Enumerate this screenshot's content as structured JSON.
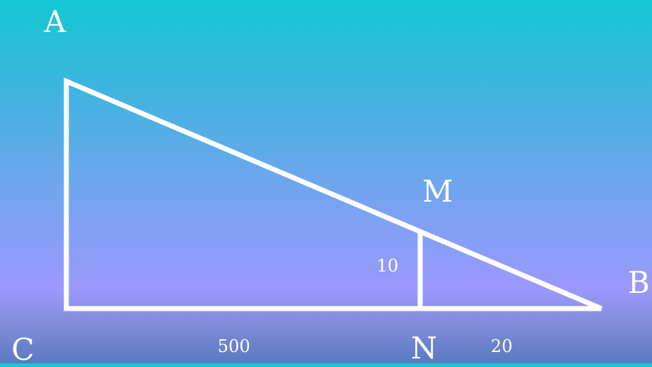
{
  "diagram": {
    "vertices": {
      "A": "A",
      "B": "B",
      "C": "C",
      "M": "M",
      "N": "N"
    },
    "measures": {
      "cn": "500",
      "nb": "20",
      "mn": "10"
    },
    "colors": {
      "stroke": "#ffffff",
      "background_top": "#14c8d2",
      "background_bottom": "#5a79c0"
    }
  }
}
